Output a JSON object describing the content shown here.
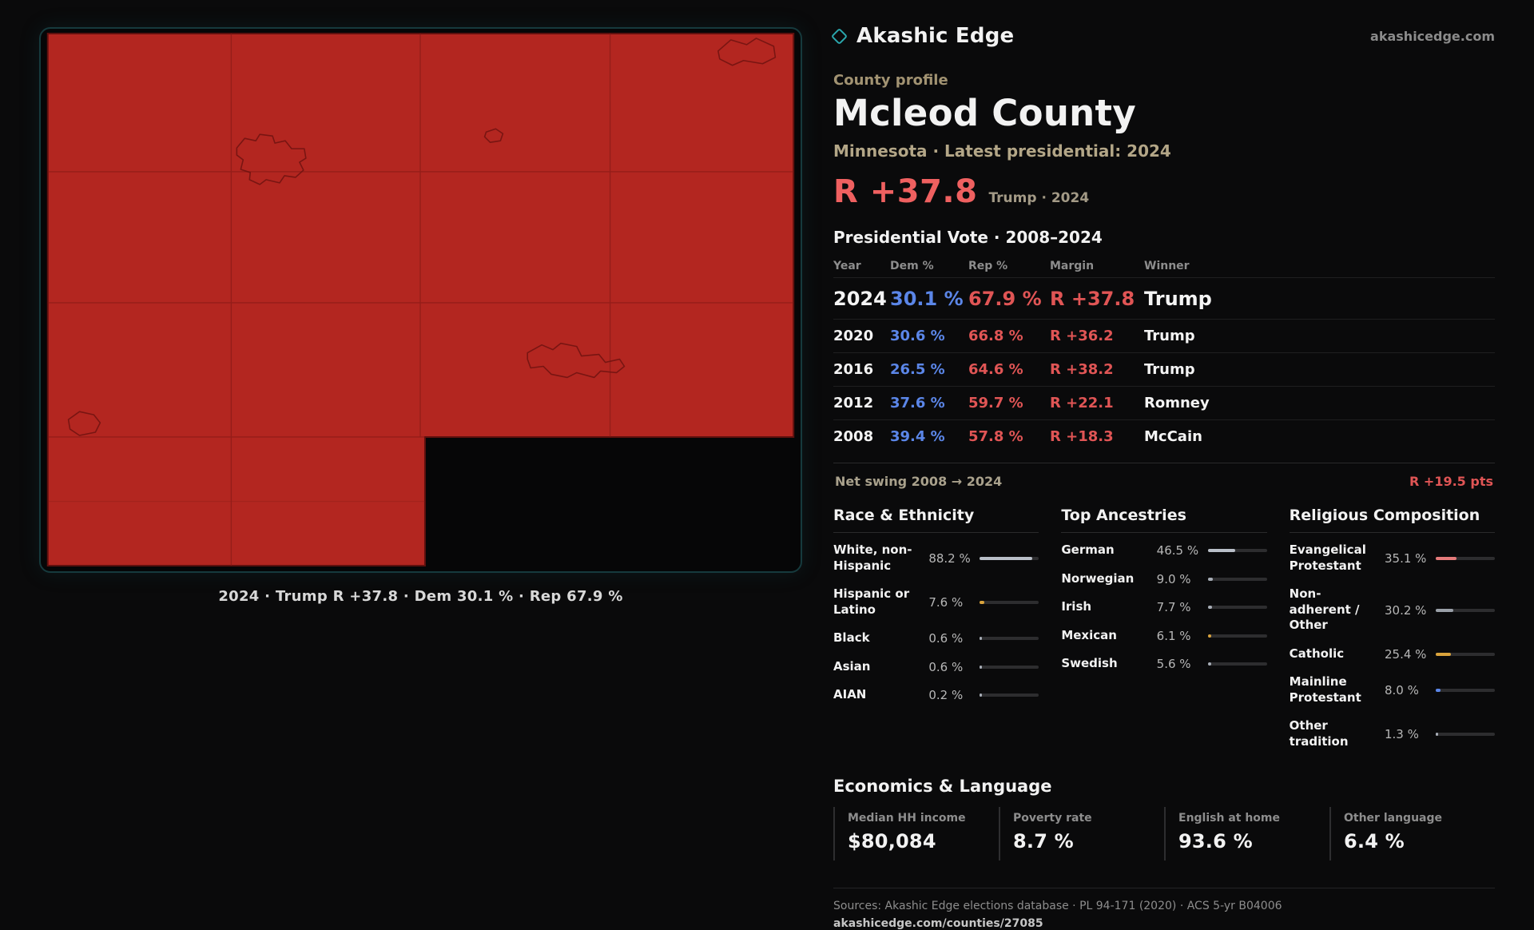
{
  "brand": {
    "name": "Akashic Edge",
    "domain": "akashicedge.com"
  },
  "map": {
    "caption": "2024 · Trump R +37.8 · Dem 30.1 % · Rep 67.9 %",
    "fill_color": "#b32620",
    "frame_color": "#163a3d"
  },
  "profile": {
    "kicker": "County profile",
    "title": "Mcleod County",
    "subtitle": "Minnesota · Latest presidential: 2024",
    "headline_margin": "R +37.8",
    "headline_context": "Trump · 2024",
    "accent_red": "#ef6060",
    "dem_blue": "#5b86e8"
  },
  "vote_table": {
    "title": "Presidential Vote · 2008–2024",
    "columns": [
      "Year",
      "Dem %",
      "Rep %",
      "Margin",
      "Winner"
    ],
    "rows": [
      {
        "year": "2024",
        "dem": "30.1 %",
        "rep": "67.9 %",
        "margin": "R +37.8",
        "winner": "Trump"
      },
      {
        "year": "2020",
        "dem": "30.6 %",
        "rep": "66.8 %",
        "margin": "R +36.2",
        "winner": "Trump"
      },
      {
        "year": "2016",
        "dem": "26.5 %",
        "rep": "64.6 %",
        "margin": "R +38.2",
        "winner": "Trump"
      },
      {
        "year": "2012",
        "dem": "37.6 %",
        "rep": "59.7 %",
        "margin": "R +22.1",
        "winner": "Romney"
      },
      {
        "year": "2008",
        "dem": "39.4 %",
        "rep": "57.8 %",
        "margin": "R +18.3",
        "winner": "McCain"
      }
    ],
    "net_swing_label": "Net swing 2008 → 2024",
    "net_swing_value": "R +19.5 pts"
  },
  "sections": {
    "race": {
      "title": "Race & Ethnicity",
      "items": [
        {
          "label": "White, non-Hispanic",
          "value": "88.2 %",
          "pct": 88.2,
          "color": "#b9bfc8"
        },
        {
          "label": "Hispanic or Latino",
          "value": "7.6 %",
          "pct": 7.6,
          "color": "#d9a33c"
        },
        {
          "label": "Black",
          "value": "0.6 %",
          "pct": 0.6,
          "color": "#a7adb6"
        },
        {
          "label": "Asian",
          "value": "0.6 %",
          "pct": 0.6,
          "color": "#a7adb6"
        },
        {
          "label": "AIAN",
          "value": "0.2 %",
          "pct": 0.2,
          "color": "#a7adb6"
        }
      ]
    },
    "ancestries": {
      "title": "Top Ancestries",
      "items": [
        {
          "label": "German",
          "value": "46.5 %",
          "pct": 46.5,
          "color": "#b9bfc8"
        },
        {
          "label": "Norwegian",
          "value": "9.0 %",
          "pct": 9.0,
          "color": "#a7adb6"
        },
        {
          "label": "Irish",
          "value": "7.7 %",
          "pct": 7.7,
          "color": "#a7adb6"
        },
        {
          "label": "Mexican",
          "value": "6.1 %",
          "pct": 6.1,
          "color": "#d9a33c"
        },
        {
          "label": "Swedish",
          "value": "5.6 %",
          "pct": 5.6,
          "color": "#a7adb6"
        }
      ]
    },
    "religion": {
      "title": "Religious Composition",
      "items": [
        {
          "label": "Evangelical Protestant",
          "value": "35.1 %",
          "pct": 35.1,
          "color": "#e57a7a"
        },
        {
          "label": "Non-adherent / Other",
          "value": "30.2 %",
          "pct": 30.2,
          "color": "#9aa0a8"
        },
        {
          "label": "Catholic",
          "value": "25.4 %",
          "pct": 25.4,
          "color": "#d9a33c"
        },
        {
          "label": "Mainline Protestant",
          "value": "8.0 %",
          "pct": 8.0,
          "color": "#5b86e8"
        },
        {
          "label": "Other tradition",
          "value": "1.3 %",
          "pct": 1.3,
          "color": "#a7adb6"
        }
      ]
    }
  },
  "economics": {
    "title": "Economics & Language",
    "stats": [
      {
        "label": "Median HH income",
        "value": "$80,084"
      },
      {
        "label": "Poverty rate",
        "value": "8.7 %"
      },
      {
        "label": "English at home",
        "value": "93.6 %"
      },
      {
        "label": "Other language",
        "value": "6.4 %"
      }
    ]
  },
  "footer": {
    "sources": "Sources: Akashic Edge elections database · PL 94-171 (2020) · ACS 5-yr B04006",
    "permalink": "akashicedge.com/counties/27085"
  }
}
